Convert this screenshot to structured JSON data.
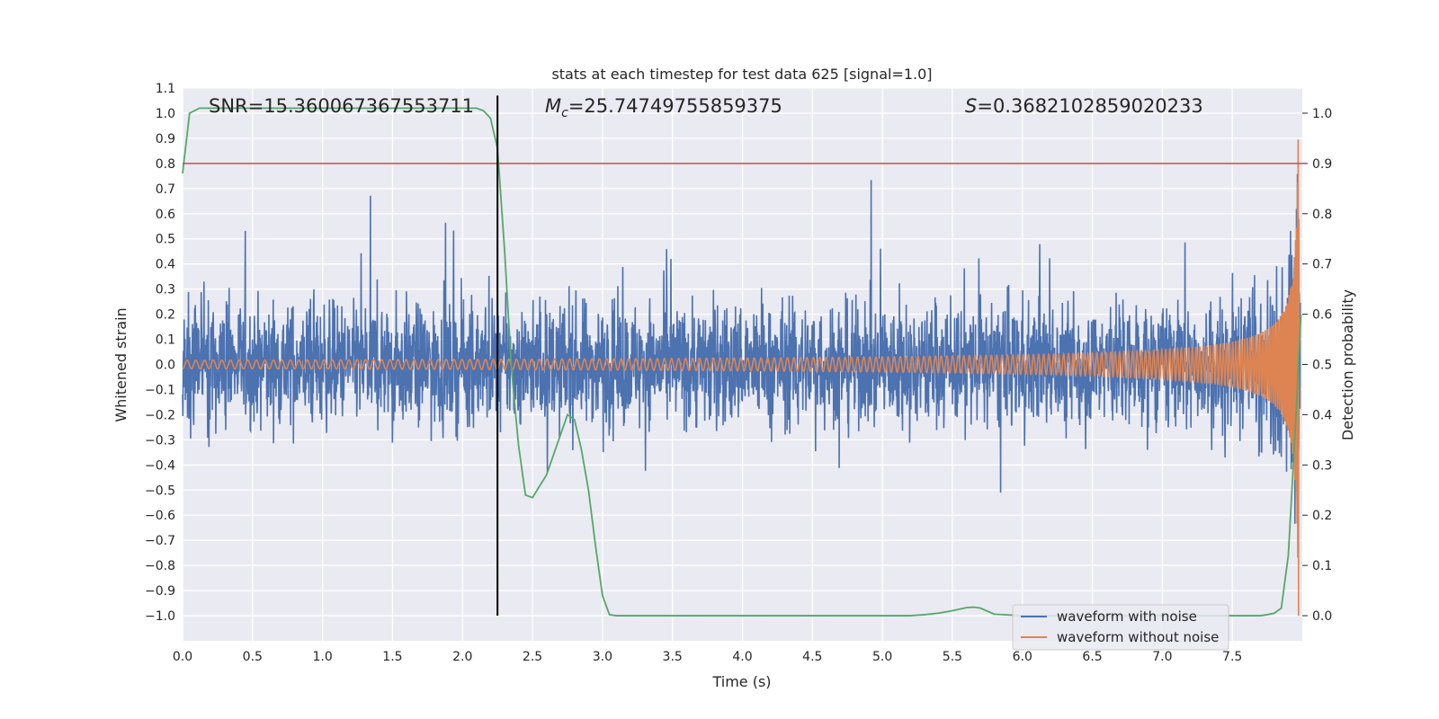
{
  "chart_data": {
    "type": "line",
    "title": "stats at each timestep for test data 625 [signal=1.0]",
    "xlabel": "Time (s)",
    "ylabel": "Whitened strain",
    "y2label": "Detection probability",
    "xlim": [
      0.0,
      8.0
    ],
    "ylim": [
      -1.1,
      1.1
    ],
    "y2lim": [
      -0.05,
      1.05
    ],
    "xticks": [
      "0.0",
      "0.5",
      "1.0",
      "1.5",
      "2.0",
      "2.5",
      "3.0",
      "3.5",
      "4.0",
      "4.5",
      "5.0",
      "5.5",
      "6.0",
      "6.5",
      "7.0",
      "7.5"
    ],
    "yticks": [
      "−1.0",
      "−0.9",
      "−0.8",
      "−0.7",
      "−0.6",
      "−0.5",
      "−0.4",
      "−0.3",
      "−0.2",
      "−0.1",
      "0.0",
      "0.1",
      "0.2",
      "0.3",
      "0.4",
      "0.5",
      "0.6",
      "0.7",
      "0.8",
      "0.9",
      "1.0",
      "1.1"
    ],
    "y2ticks": [
      "0.0",
      "0.1",
      "0.2",
      "0.3",
      "0.4",
      "0.5",
      "0.6",
      "0.7",
      "0.8",
      "0.9",
      "1.0"
    ],
    "grid": true,
    "legend_position": "lower-right",
    "annotations": {
      "snr": "SNR=15.360067367553711",
      "mc_symbol": "M",
      "mc_sub": "c",
      "mc_value": "=25.74749755859375",
      "s_symbol": "S",
      "s_value": "=0.3682102859020233"
    },
    "series": [
      {
        "name": "waveform with noise",
        "color": "#4c72b0",
        "kind": "noise",
        "amplitude": 0.43
      },
      {
        "name": "waveform without noise",
        "color": "#dd8452",
        "kind": "chirp",
        "merger_time": 7.98,
        "peak_amplitude": 1.0
      },
      {
        "color": "#55a868",
        "axis": "secondary",
        "x": [
          0.0,
          0.05,
          0.12,
          0.25,
          0.5,
          1.0,
          1.5,
          2.0,
          2.1,
          2.15,
          2.2,
          2.25,
          2.3,
          2.35,
          2.4,
          2.45,
          2.5,
          2.6,
          2.7,
          2.75,
          2.8,
          2.85,
          2.9,
          2.95,
          3.0,
          3.05,
          3.1,
          3.5,
          4.0,
          4.5,
          5.0,
          5.2,
          5.3,
          5.4,
          5.5,
          5.6,
          5.65,
          5.7,
          5.8,
          6.0,
          6.5,
          7.0,
          7.5,
          7.7,
          7.75,
          7.8,
          7.85,
          7.9,
          7.95,
          7.99
        ],
        "y": [
          0.88,
          1.0,
          1.01,
          1.01,
          1.01,
          1.01,
          1.01,
          1.01,
          1.01,
          1.005,
          0.99,
          0.93,
          0.73,
          0.49,
          0.34,
          0.24,
          0.235,
          0.28,
          0.36,
          0.4,
          0.39,
          0.33,
          0.25,
          0.14,
          0.04,
          0.002,
          0.0,
          0.0,
          0.0,
          0.0,
          0.0,
          0.0,
          0.002,
          0.005,
          0.01,
          0.016,
          0.017,
          0.015,
          0.003,
          0.0,
          0.0,
          0.0,
          0.0,
          0.0,
          0.002,
          0.005,
          0.015,
          0.12,
          0.37,
          0.6
        ]
      },
      {
        "color": "#c44e52",
        "axis": "secondary",
        "kind": "hline",
        "y": 0.9
      },
      {
        "color": "#000000",
        "kind": "vline",
        "x": 2.25,
        "ymin": -1.0,
        "ymax": 1.07
      }
    ]
  }
}
